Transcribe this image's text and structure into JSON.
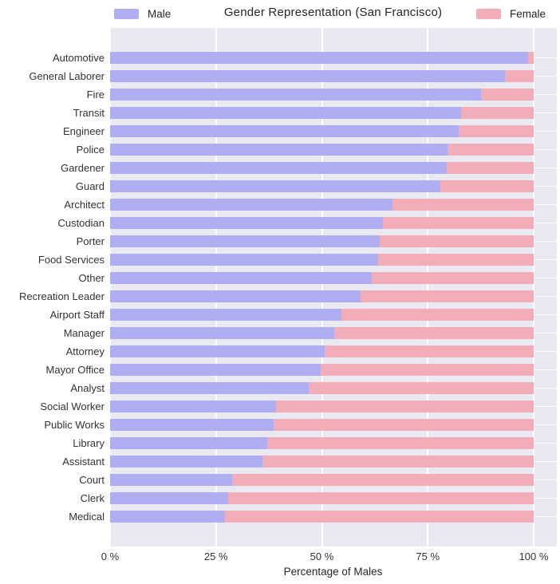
{
  "title": "Gender Representation (San Francisco)",
  "legend": [
    {
      "label": "Male",
      "color": "#b0aef2"
    },
    {
      "label": "Female",
      "color": "#f2aeb8"
    }
  ],
  "x_axis": {
    "label": "Percentage of Males",
    "ticks": [
      "0 %",
      "25 %",
      "50 %",
      "75 %",
      "100 %"
    ]
  },
  "colors": {
    "plot_background": "#e9e9f2",
    "gridline": "#ffffff",
    "text": "#333333"
  },
  "chart_data": {
    "type": "bar",
    "orientation": "horizontal",
    "stacked": true,
    "title": "Gender Representation (San Francisco)",
    "xlabel": "Percentage of Males",
    "xlim": [
      0,
      100
    ],
    "x_tick_labels": [
      "0 %",
      "25 %",
      "50 %",
      "75 %",
      "100 %"
    ],
    "grid": true,
    "legend_position": "top",
    "categories": [
      "Automotive",
      "General Laborer",
      "Fire",
      "Transit",
      "Engineer",
      "Police",
      "Gardener",
      "Guard",
      "Architect",
      "Custodian",
      "Porter",
      "Food Services",
      "Other",
      "Recreation Leader",
      "Airport Staff",
      "Manager",
      "Attorney",
      "Mayor Office",
      "Analyst",
      "Social Worker",
      "Public Works",
      "Library",
      "Assistant",
      "Court",
      "Clerk",
      "Medical"
    ],
    "series": [
      {
        "name": "Male",
        "color": "#b0aef2",
        "values": [
          98.6,
          93.2,
          87.6,
          82.8,
          82.3,
          79.6,
          79.4,
          78.0,
          66.7,
          64.4,
          63.7,
          63.2,
          61.8,
          59.1,
          54.6,
          53.0,
          50.6,
          49.8,
          46.8,
          39.1,
          38.7,
          37.1,
          36.0,
          28.8,
          27.9,
          27.1
        ]
      },
      {
        "name": "Female",
        "color": "#f2aeb8",
        "values": [
          1.4,
          6.8,
          12.4,
          17.2,
          17.7,
          20.4,
          20.6,
          22.0,
          33.3,
          35.6,
          36.3,
          36.8,
          38.2,
          40.9,
          45.4,
          47.0,
          49.4,
          50.2,
          53.2,
          60.9,
          61.3,
          62.9,
          64.0,
          71.2,
          72.1,
          72.9
        ]
      }
    ]
  }
}
